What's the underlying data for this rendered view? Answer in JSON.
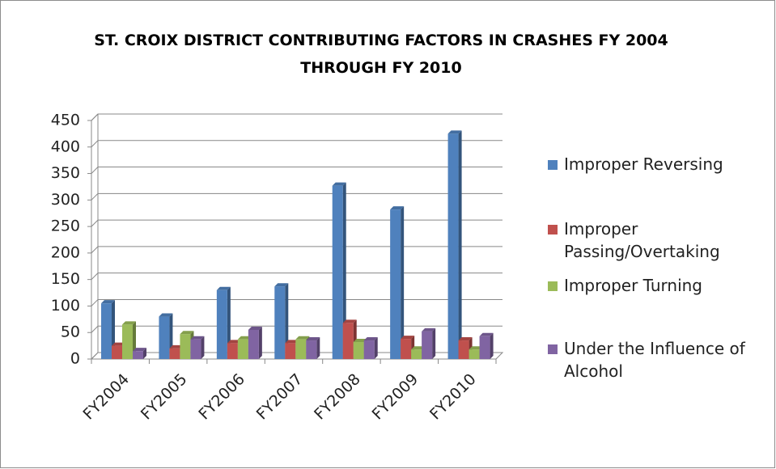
{
  "chart_data": {
    "type": "bar",
    "title": "ST. CROIX DISTRICT CONTRIBUTING FACTORS IN CRASHES FY 2004 THROUGH FY 2010",
    "categories": [
      "FY2004",
      "FY2005",
      "FY2006",
      "FY2007",
      "FY2008",
      "FY2009",
      "FY2010"
    ],
    "series": [
      {
        "name": "Improper Reversing",
        "color": "#4f81bd",
        "values": [
          105,
          80,
          130,
          137,
          327,
          282,
          425
        ]
      },
      {
        "name": "Improper Passing/Overtaking",
        "color": "#c0504d",
        "values": [
          25,
          20,
          30,
          30,
          68,
          38,
          35
        ]
      },
      {
        "name": "Improper Turning",
        "color": "#9bbb59",
        "values": [
          65,
          47,
          37,
          37,
          32,
          18,
          18
        ]
      },
      {
        "name": "Under the Influence of Alcohol",
        "color": "#8064a2",
        "values": [
          15,
          37,
          55,
          35,
          35,
          52,
          43
        ]
      }
    ],
    "ylim": [
      0,
      450
    ],
    "yticks": [
      0,
      50,
      100,
      150,
      200,
      250,
      300,
      350,
      400,
      450
    ],
    "grid": true,
    "legend": "right"
  }
}
